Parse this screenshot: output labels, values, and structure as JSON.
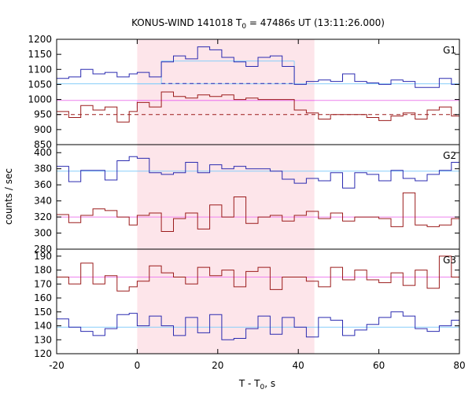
{
  "title_prefix": "KONUS-WIND 141018 T",
  "title_sub": "0",
  "title_suffix": " = 47486s UT (13:11:26.000)",
  "xlabel_prefix": "T - T",
  "xlabel_sub": "0",
  "xlabel_suffix": ", s",
  "ylabel": "counts / sec",
  "colors": {
    "blue": "#2b2bb0",
    "red": "#9b1b1b",
    "light_blue": "#87cefa",
    "pink": "#ee82ee",
    "shade": "#fde5ea"
  },
  "chart_data": [
    {
      "type": "line",
      "panel": "G1",
      "x_edges": [
        -20,
        -17,
        -14,
        -11,
        -8,
        -5,
        -2,
        0,
        3,
        6,
        9,
        12,
        15,
        18,
        21,
        24,
        27,
        30,
        33,
        36,
        39,
        42,
        45,
        48,
        51,
        54,
        57,
        60,
        63,
        66,
        69,
        72,
        75,
        78,
        80
      ],
      "xlim": [
        -20,
        80
      ],
      "ylim": [
        850,
        1200
      ],
      "yticks": [
        850,
        900,
        950,
        1000,
        1050,
        1100,
        1150,
        1200
      ],
      "series": [
        {
          "color": "blue",
          "values": [
            1070,
            1075,
            1100,
            1085,
            1090,
            1075,
            1085,
            1090,
            1075,
            1125,
            1145,
            1135,
            1175,
            1165,
            1140,
            1125,
            1110,
            1140,
            1145,
            1110,
            1050,
            1060,
            1065,
            1060,
            1085,
            1060,
            1055,
            1050,
            1065,
            1060,
            1040,
            1040,
            1070,
            1050
          ]
        },
        {
          "color": "red",
          "values": [
            960,
            940,
            980,
            965,
            975,
            925,
            960,
            990,
            975,
            1025,
            1010,
            1005,
            1015,
            1010,
            1015,
            1000,
            1005,
            1000,
            1000,
            1000,
            965,
            955,
            935,
            950,
            950,
            950,
            940,
            930,
            945,
            955,
            935,
            965,
            975,
            945
          ]
        }
      ],
      "background_levels": [
        {
          "color": "light_blue",
          "value": 1052,
          "x_start": -20,
          "x_end": 80
        },
        {
          "color": "pink",
          "value": 997,
          "x_start": -20,
          "x_end": 80
        }
      ],
      "selection_steps": [
        {
          "color": "light_blue",
          "x_start": 0,
          "x_end": 6,
          "value": 1052
        },
        {
          "color": "light_blue",
          "x_start": 6,
          "x_end": 39,
          "value": 1128
        },
        {
          "color": "pink",
          "x_start": 0,
          "x_end": 44,
          "value": 997
        }
      ],
      "dashed_levels": [
        {
          "color": "blue",
          "x_start": 6,
          "x_end": 39,
          "value": 1053
        },
        {
          "color": "red",
          "x_start": -20,
          "x_end": 80,
          "value": 950
        }
      ]
    },
    {
      "type": "line",
      "panel": "G2",
      "x_edges": [
        -20,
        -17,
        -14,
        -11,
        -8,
        -5,
        -2,
        0,
        3,
        6,
        9,
        12,
        15,
        18,
        21,
        24,
        27,
        30,
        33,
        36,
        39,
        42,
        45,
        48,
        51,
        54,
        57,
        60,
        63,
        66,
        69,
        72,
        75,
        78,
        80
      ],
      "xlim": [
        -20,
        80
      ],
      "ylim": [
        280,
        410
      ],
      "yticks": [
        280,
        300,
        320,
        340,
        360,
        380,
        400
      ],
      "series": [
        {
          "color": "blue",
          "values": [
            383,
            364,
            378,
            378,
            366,
            390,
            395,
            393,
            375,
            373,
            375,
            388,
            375,
            385,
            380,
            383,
            380,
            380,
            377,
            367,
            362,
            368,
            365,
            375,
            356,
            375,
            373,
            365,
            378,
            368,
            365,
            373,
            378,
            388
          ]
        },
        {
          "color": "red",
          "values": [
            323,
            313,
            322,
            330,
            328,
            320,
            310,
            322,
            325,
            302,
            318,
            325,
            305,
            335,
            320,
            345,
            312,
            320,
            322,
            315,
            322,
            327,
            318,
            325,
            315,
            320,
            320,
            318,
            308,
            350,
            310,
            308,
            310,
            318
          ]
        }
      ],
      "background_levels": [
        {
          "color": "light_blue",
          "value": 377,
          "x_start": -20,
          "x_end": 80
        },
        {
          "color": "pink",
          "value": 320,
          "x_start": -20,
          "x_end": 80
        }
      ]
    },
    {
      "type": "line",
      "panel": "G3",
      "x_edges": [
        -20,
        -17,
        -14,
        -11,
        -8,
        -5,
        -2,
        0,
        3,
        6,
        9,
        12,
        15,
        18,
        21,
        24,
        27,
        30,
        33,
        36,
        39,
        42,
        45,
        48,
        51,
        54,
        57,
        60,
        63,
        66,
        69,
        72,
        75,
        78,
        80
      ],
      "xlim": [
        -20,
        80
      ],
      "ylim": [
        120,
        195
      ],
      "yticks": [
        120,
        130,
        140,
        150,
        160,
        170,
        180,
        190
      ],
      "series": [
        {
          "color": "blue",
          "values": [
            145,
            139,
            136,
            133,
            138,
            148,
            149,
            140,
            147,
            140,
            133,
            146,
            135,
            148,
            130,
            131,
            138,
            147,
            134,
            146,
            139,
            132,
            146,
            144,
            133,
            137,
            141,
            146,
            150,
            147,
            138,
            136,
            140,
            144
          ]
        },
        {
          "color": "red",
          "values": [
            175,
            170,
            185,
            170,
            176,
            165,
            168,
            172,
            183,
            178,
            175,
            170,
            182,
            176,
            180,
            168,
            179,
            182,
            166,
            175,
            175,
            172,
            168,
            182,
            173,
            180,
            173,
            171,
            178,
            169,
            180,
            167,
            190,
            175
          ]
        }
      ],
      "background_levels": [
        {
          "color": "light_blue",
          "value": 139,
          "x_start": -20,
          "x_end": 80
        },
        {
          "color": "pink",
          "value": 175,
          "x_start": -20,
          "x_end": 80
        }
      ]
    }
  ],
  "shaded_interval": {
    "x_start": 0,
    "x_end": 44
  },
  "x_axis": {
    "min": -20,
    "max": 80,
    "ticks": [
      -20,
      0,
      20,
      40,
      60,
      80
    ],
    "tick_labels": [
      "-20",
      "0",
      "20",
      "40",
      "60",
      "80"
    ]
  }
}
